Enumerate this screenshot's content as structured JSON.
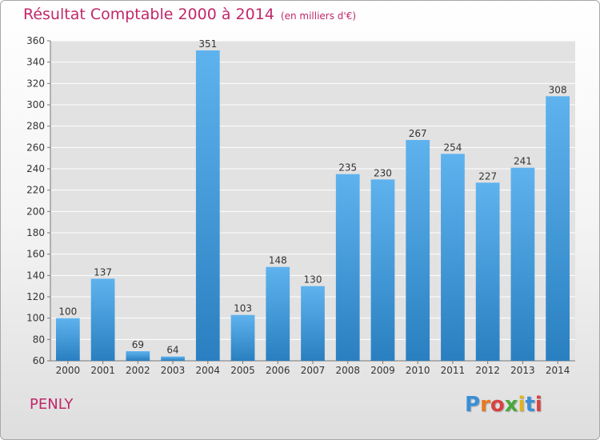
{
  "title": {
    "main": "Résultat Comptable 2000 à 2014",
    "unit": "(en milliers d'€)"
  },
  "commune": "PENLY",
  "logo": {
    "text": "Proxiti",
    "letter_colors": [
      "#3a8fd6",
      "#e8781e",
      "#d94141",
      "#4aa83c",
      "#e0b21d",
      "#3a8fd6",
      "#d94141"
    ]
  },
  "colors": {
    "bar_top": "#5eb3ee",
    "bar_bottom": "#2a7fc0",
    "accent": "#c0286a",
    "grid": "#ffffff",
    "axis": "#777777"
  },
  "chart_data": {
    "type": "bar",
    "categories": [
      "2000",
      "2001",
      "2002",
      "2003",
      "2004",
      "2005",
      "2006",
      "2007",
      "2008",
      "2009",
      "2010",
      "2011",
      "2012",
      "2013",
      "2014"
    ],
    "values": [
      100,
      137,
      69,
      64,
      351,
      103,
      148,
      130,
      235,
      230,
      267,
      254,
      227,
      241,
      308
    ],
    "ylim": [
      60,
      360
    ],
    "yticks": [
      60,
      80,
      100,
      120,
      140,
      160,
      180,
      200,
      220,
      240,
      260,
      280,
      300,
      320,
      340,
      360
    ],
    "title": "Résultat Comptable 2000 à 2014",
    "xlabel": "",
    "ylabel": "",
    "grid": "horizontal"
  }
}
